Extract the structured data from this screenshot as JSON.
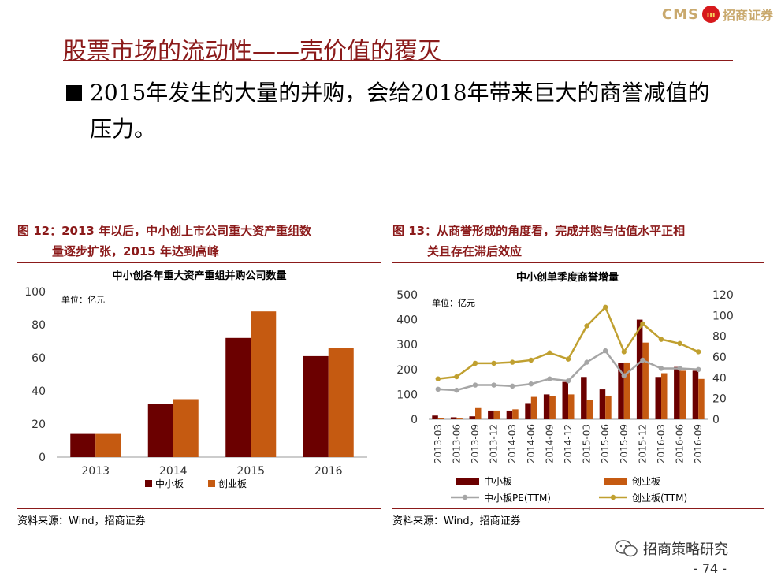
{
  "header": {
    "logo_text": "CMS",
    "logo_mark": "m",
    "logo_cn": "招商证券"
  },
  "slide": {
    "title": "股票市场的流动性——壳价值的覆灭",
    "bullet": "2015年发生的大量的并购，会给2018年带来巨大的商誉减值的压力。"
  },
  "figure12": {
    "caption_line1": "图 12：2013 年以后，中小创上市公司重大资产重组数",
    "caption_line2": "量逐步扩张，2015 年达到高峰",
    "source": "资料来源：Wind，招商证券",
    "unit_label": "单位：亿元"
  },
  "figure13": {
    "caption_line1": "图 13：从商誉形成的角度看，完成并购与估值水平正相",
    "caption_line2": "关且存在滞后效应",
    "source": "资料来源：Wind，招商证券",
    "unit_label": "单位：亿元"
  },
  "chart_data": [
    {
      "type": "bar",
      "title": "中小创各年重大资产重组并购公司数量",
      "categories": [
        "2013",
        "2014",
        "2015",
        "2016"
      ],
      "series": [
        {
          "name": "中小板",
          "values": [
            14,
            32,
            72,
            61
          ],
          "color": "#6B0000"
        },
        {
          "name": "创业板",
          "values": [
            14,
            35,
            88,
            66
          ],
          "color": "#C55A11"
        }
      ],
      "ylim": [
        0,
        100
      ],
      "yticks": [
        0,
        20,
        40,
        60,
        80,
        100
      ],
      "legend": "bottom",
      "grid": false
    },
    {
      "type": "bar+line",
      "title": "中小创单季度商誉增量",
      "categories": [
        "2013-03",
        "2013-06",
        "2013-09",
        "2013-12",
        "2014-03",
        "2014-06",
        "2014-09",
        "2014-12",
        "2015-03",
        "2015-06",
        "2015-09",
        "2015-12",
        "2016-03",
        "2016-06",
        "2016-09"
      ],
      "bar_series": [
        {
          "name": "中小板",
          "values": [
            15,
            8,
            12,
            35,
            35,
            65,
            100,
            150,
            170,
            120,
            225,
            400,
            170,
            210,
            195
          ],
          "color": "#6B0000"
        },
        {
          "name": "创业板",
          "values": [
            5,
            3,
            45,
            35,
            40,
            90,
            92,
            100,
            78,
            95,
            228,
            308,
            185,
            195,
            162
          ],
          "color": "#C55A11"
        }
      ],
      "line_series": [
        {
          "name": "中小板PE(TTM)",
          "values": [
            29,
            28,
            33,
            33,
            32,
            34,
            39,
            37,
            55,
            66,
            42,
            57,
            49,
            49,
            48
          ],
          "color": "#A6A6A6"
        },
        {
          "name": "创业板(TTM)",
          "values": [
            39,
            41,
            54,
            54,
            55,
            57,
            64,
            58,
            90,
            108,
            65,
            92,
            77,
            73,
            65
          ],
          "color": "#C0A030"
        }
      ],
      "ylim_left": [
        0,
        500
      ],
      "yticks_left": [
        0,
        100,
        200,
        300,
        400,
        500
      ],
      "ylim_right": [
        0,
        120
      ],
      "yticks_right": [
        0,
        20,
        40,
        60,
        80,
        100,
        120
      ],
      "legend": "bottom",
      "grid": false
    }
  ],
  "footer": {
    "brand": "招商策略研究",
    "page": "- 74 -"
  }
}
